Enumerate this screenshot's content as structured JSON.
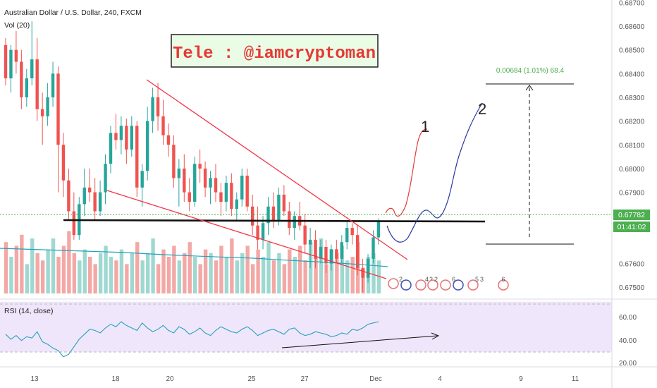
{
  "header": {
    "symbol": "Australian Dollar / U.S. Dollar, 240, FXCM",
    "volume_indicator": "Vol (20)",
    "rsi_indicator": "RSI (14, close)"
  },
  "watermark": {
    "text": "Tele : @iamcryptoman"
  },
  "price_axis": {
    "ticks": [
      "0.68700",
      "0.68600",
      "0.68500",
      "0.68400",
      "0.68300",
      "0.68200",
      "0.68100",
      "0.68000",
      "0.67900",
      "0.67600",
      "0.67500"
    ],
    "current_price": "0.67782",
    "countdown": "01:41:02"
  },
  "rsi_axis": {
    "ticks": [
      "60.00",
      "40.00",
      "20.00"
    ]
  },
  "time_axis": {
    "ticks": [
      "13",
      "18",
      "20",
      "25",
      "27",
      "Dec",
      "4",
      "9",
      "11"
    ]
  },
  "projection": {
    "measure_label": "0.00684 (1.01%) 68.4",
    "path1_label": "1",
    "path2_label": "2"
  },
  "events": [
    "2",
    "4",
    "2",
    "2",
    "6",
    "5",
    "3",
    "6"
  ],
  "colors": {
    "bull": "#26a69a",
    "bear": "#ef5350",
    "trendline": "#f23645",
    "projection1": "#e53935",
    "projection2": "#2a3a9c",
    "rsi_line": "#26a2b8",
    "rsi_band": "#efe6fb",
    "current_price": "#4caf50"
  },
  "chart_data": {
    "type": "candlestick",
    "interval": "240",
    "y_range": [
      0.6745,
      0.6871
    ],
    "rsi_range": [
      18,
      72
    ],
    "rsi_levels": [
      70,
      30
    ],
    "key_levels": {
      "support": 0.677,
      "target_top": 0.68354,
      "target_bottom": 0.6767
    },
    "candles": [
      [
        0.6852,
        0.6855,
        0.6835,
        0.6838
      ],
      [
        0.6838,
        0.6852,
        0.6832,
        0.685
      ],
      [
        0.685,
        0.6858,
        0.684,
        0.6845
      ],
      [
        0.6845,
        0.685,
        0.6825,
        0.683
      ],
      [
        0.683,
        0.6842,
        0.6826,
        0.6838
      ],
      [
        0.6838,
        0.6862,
        0.6835,
        0.6846
      ],
      [
        0.6846,
        0.6855,
        0.682,
        0.6825
      ],
      [
        0.6825,
        0.6832,
        0.681,
        0.6822
      ],
      [
        0.6822,
        0.6836,
        0.6818,
        0.683
      ],
      [
        0.683,
        0.6845,
        0.6826,
        0.684
      ],
      [
        0.684,
        0.6843,
        0.679,
        0.681
      ],
      [
        0.681,
        0.6815,
        0.6788,
        0.6795
      ],
      [
        0.6795,
        0.68,
        0.6778,
        0.6782
      ],
      [
        0.6782,
        0.679,
        0.677,
        0.6772
      ],
      [
        0.6772,
        0.6788,
        0.677,
        0.6785
      ],
      [
        0.6785,
        0.68,
        0.678,
        0.6792
      ],
      [
        0.6792,
        0.68,
        0.6786,
        0.679
      ],
      [
        0.679,
        0.6796,
        0.6778,
        0.6782
      ],
      [
        0.6782,
        0.6795,
        0.678,
        0.679
      ],
      [
        0.679,
        0.6806,
        0.6785,
        0.6802
      ],
      [
        0.6802,
        0.6818,
        0.6798,
        0.6815
      ],
      [
        0.6815,
        0.6823,
        0.6808,
        0.6812
      ],
      [
        0.6812,
        0.6822,
        0.6806,
        0.6818
      ],
      [
        0.6818,
        0.6821,
        0.6802,
        0.6808
      ],
      [
        0.6808,
        0.6822,
        0.6805,
        0.6818
      ],
      [
        0.6818,
        0.682,
        0.6788,
        0.6792
      ],
      [
        0.6792,
        0.6802,
        0.6784,
        0.6799
      ],
      [
        0.6799,
        0.6826,
        0.6795,
        0.682
      ],
      [
        0.682,
        0.6834,
        0.6815,
        0.683
      ],
      [
        0.683,
        0.6836,
        0.6816,
        0.6822
      ],
      [
        0.6822,
        0.6829,
        0.681,
        0.6814
      ],
      [
        0.6814,
        0.6819,
        0.6805,
        0.681
      ],
      [
        0.681,
        0.6814,
        0.6792,
        0.6796
      ],
      [
        0.6796,
        0.6804,
        0.6784,
        0.68
      ],
      [
        0.68,
        0.6806,
        0.6786,
        0.679
      ],
      [
        0.679,
        0.6796,
        0.6782,
        0.6786
      ],
      [
        0.6786,
        0.6805,
        0.6784,
        0.6802
      ],
      [
        0.6802,
        0.6808,
        0.6794,
        0.68
      ],
      [
        0.68,
        0.6803,
        0.6788,
        0.6792
      ],
      [
        0.6792,
        0.6799,
        0.6785,
        0.6796
      ],
      [
        0.6796,
        0.6802,
        0.6786,
        0.679
      ],
      [
        0.679,
        0.6794,
        0.678,
        0.6786
      ],
      [
        0.6786,
        0.6797,
        0.6782,
        0.6794
      ],
      [
        0.6794,
        0.6798,
        0.678,
        0.6783
      ],
      [
        0.6783,
        0.679,
        0.6778,
        0.6787
      ],
      [
        0.6787,
        0.68,
        0.6784,
        0.6797
      ],
      [
        0.6797,
        0.68,
        0.6782,
        0.6784
      ],
      [
        0.6784,
        0.6789,
        0.6772,
        0.6776
      ],
      [
        0.6776,
        0.6784,
        0.6766,
        0.677
      ],
      [
        0.677,
        0.678,
        0.6766,
        0.6777
      ],
      [
        0.6777,
        0.6788,
        0.6772,
        0.6784
      ],
      [
        0.6784,
        0.679,
        0.6775,
        0.6778
      ],
      [
        0.6778,
        0.6792,
        0.6776,
        0.6789
      ],
      [
        0.6789,
        0.6793,
        0.678,
        0.6782
      ],
      [
        0.6782,
        0.6786,
        0.6772,
        0.6775
      ],
      [
        0.6775,
        0.6782,
        0.677,
        0.678
      ],
      [
        0.678,
        0.6786,
        0.6774,
        0.6776
      ],
      [
        0.6776,
        0.6781,
        0.6764,
        0.6768
      ],
      [
        0.6768,
        0.6775,
        0.6758,
        0.677
      ],
      [
        0.677,
        0.6774,
        0.6758,
        0.6762
      ],
      [
        0.6762,
        0.677,
        0.676,
        0.6767
      ],
      [
        0.6767,
        0.677,
        0.6756,
        0.676
      ],
      [
        0.676,
        0.6768,
        0.6757,
        0.6766
      ],
      [
        0.6766,
        0.677,
        0.676,
        0.6762
      ],
      [
        0.6762,
        0.6772,
        0.676,
        0.6769
      ],
      [
        0.6769,
        0.6778,
        0.6766,
        0.6775
      ],
      [
        0.6775,
        0.6777,
        0.6768,
        0.6772
      ],
      [
        0.6772,
        0.6776,
        0.6755,
        0.6758
      ],
      [
        0.6758,
        0.6762,
        0.6748,
        0.6754
      ],
      [
        0.6754,
        0.6764,
        0.6752,
        0.6762
      ],
      [
        0.6762,
        0.6774,
        0.676,
        0.6771
      ],
      [
        0.6771,
        0.6779,
        0.6768,
        0.6778
      ]
    ],
    "volume": [
      28,
      20,
      26,
      32,
      16,
      30,
      22,
      18,
      24,
      30,
      20,
      26,
      34,
      22,
      18,
      24,
      20,
      16,
      22,
      26,
      20,
      18,
      24,
      16,
      22,
      28,
      18,
      22,
      30,
      16,
      24,
      20,
      26,
      18,
      22,
      28,
      20,
      16,
      24,
      22,
      18,
      26,
      20,
      30,
      18,
      22,
      26,
      16,
      24,
      20,
      28,
      18,
      22,
      16,
      24,
      20,
      26,
      18,
      28,
      20,
      30,
      16,
      24,
      22,
      26,
      18,
      20,
      28,
      14,
      20,
      22,
      18
    ],
    "rsi": [
      44,
      40,
      43,
      39,
      42,
      41,
      46,
      38,
      36,
      33,
      31,
      26,
      28,
      34,
      40,
      44,
      48,
      47,
      45,
      49,
      52,
      50,
      54,
      51,
      49,
      47,
      53,
      49,
      46,
      48,
      51,
      47,
      45,
      50,
      48,
      44,
      46,
      49,
      45,
      43,
      47,
      50,
      48,
      46,
      45,
      48,
      50,
      47,
      43,
      45,
      47,
      48,
      46,
      44,
      48,
      49,
      45,
      43,
      44,
      46,
      45,
      44,
      42,
      43,
      45,
      44,
      48,
      47,
      49,
      52,
      53,
      54
    ]
  }
}
